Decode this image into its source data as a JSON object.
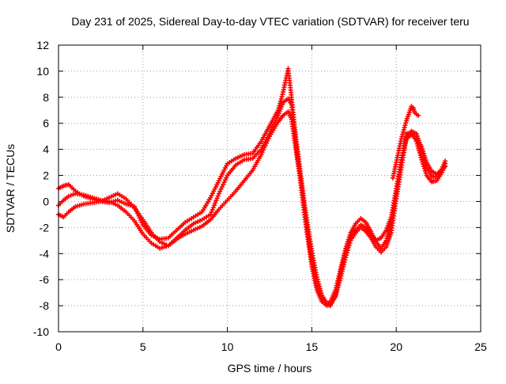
{
  "chart_data": {
    "type": "scatter",
    "title": "Day 231 of 2025, Sidereal Day-to-day VTEC variation (SDTVAR) for receiver teru",
    "xlabel": "GPS time / hours",
    "ylabel": "SDTVAR / TECUs",
    "xlim": [
      0,
      25
    ],
    "ylim": [
      -10,
      12
    ],
    "xticks": [
      0,
      5,
      10,
      15,
      20,
      25
    ],
    "yticks": [
      -10,
      -8,
      -6,
      -4,
      -2,
      0,
      2,
      4,
      6,
      8,
      10,
      12
    ],
    "grid": true,
    "marker": "plus",
    "marker_color": "#ff0000",
    "series": [
      {
        "x": [
          0.0,
          0.3,
          0.6,
          1.0,
          1.5,
          2.0,
          2.5,
          3.0,
          3.5,
          4.0,
          4.5,
          5.0,
          5.5,
          6.0,
          6.5,
          7.0,
          7.5,
          8.0,
          8.5,
          9.0,
          9.5,
          10.0,
          10.5,
          11.0,
          11.5,
          12.0,
          12.5,
          13.0,
          13.3,
          13.6,
          13.8,
          14.0,
          14.3,
          14.6,
          15.0,
          15.3,
          15.6,
          15.9,
          16.1,
          16.4,
          16.7,
          17.0,
          17.3,
          17.6,
          17.9,
          18.2,
          18.5,
          18.8,
          19.1,
          19.4,
          19.7,
          20.0,
          20.3,
          20.6,
          20.9,
          21.2,
          21.5,
          21.8,
          22.1,
          22.4,
          22.7,
          22.9
        ],
        "y": [
          1.0,
          1.2,
          1.3,
          0.8,
          0.4,
          0.2,
          0.0,
          -0.1,
          0.1,
          -0.2,
          -0.4,
          -1.8,
          -2.6,
          -2.9,
          -2.8,
          -2.2,
          -1.6,
          -1.2,
          -0.8,
          0.3,
          1.6,
          2.9,
          3.3,
          3.6,
          3.7,
          4.6,
          5.8,
          7.0,
          8.4,
          10.2,
          8.0,
          5.5,
          2.5,
          -0.5,
          -3.8,
          -5.8,
          -7.2,
          -7.8,
          -8.0,
          -7.2,
          -5.5,
          -3.8,
          -2.8,
          -2.2,
          -1.8,
          -2.0,
          -2.5,
          -3.0,
          -2.8,
          -2.2,
          -1.2,
          1.0,
          3.2,
          4.8,
          5.1,
          5.0,
          4.2,
          3.0,
          2.3,
          2.1,
          2.5,
          3.1
        ]
      },
      {
        "x": [
          0.0,
          0.3,
          0.6,
          1.0,
          1.5,
          2.0,
          2.5,
          3.0,
          3.5,
          4.0,
          4.5,
          5.0,
          5.5,
          6.0,
          6.5,
          7.0,
          7.5,
          8.0,
          8.5,
          9.0,
          9.5,
          10.0,
          10.5,
          11.0,
          11.5,
          12.0,
          12.5,
          13.0,
          13.3,
          13.6,
          13.8,
          14.0,
          14.3,
          14.6,
          15.0,
          15.3,
          15.6,
          15.9,
          16.1,
          16.4,
          16.7,
          17.0,
          17.3,
          17.6,
          17.9,
          18.2,
          18.5,
          18.8,
          19.1,
          19.4,
          19.7,
          20.0,
          20.3,
          20.6,
          20.9,
          21.2,
          21.5,
          21.8,
          22.1,
          22.4,
          22.7,
          22.9
        ],
        "y": [
          -0.3,
          0.1,
          0.4,
          0.6,
          0.5,
          0.3,
          0.1,
          0.0,
          -0.3,
          -0.8,
          -1.5,
          -2.5,
          -3.2,
          -3.6,
          -3.4,
          -2.8,
          -2.2,
          -1.7,
          -1.4,
          -1.0,
          0.6,
          2.0,
          2.8,
          3.2,
          3.3,
          4.0,
          5.2,
          6.6,
          7.6,
          7.9,
          7.4,
          5.0,
          2.0,
          -1.0,
          -4.5,
          -6.5,
          -7.5,
          -7.9,
          -7.7,
          -6.8,
          -5.2,
          -3.6,
          -2.4,
          -1.7,
          -1.3,
          -1.6,
          -2.3,
          -3.1,
          -3.6,
          -3.0,
          -1.6,
          0.6,
          3.0,
          5.2,
          5.3,
          4.6,
          3.2,
          2.0,
          1.5,
          1.6,
          2.2,
          2.9
        ]
      },
      {
        "x": [
          0.0,
          0.3,
          0.6,
          1.0,
          1.5,
          2.0,
          2.5,
          3.0,
          3.5,
          4.0,
          4.5,
          5.0,
          5.5,
          6.0,
          6.5,
          7.0,
          7.5,
          8.0,
          8.5,
          9.0,
          9.5,
          10.0,
          10.5,
          11.0,
          11.5,
          12.0,
          12.5,
          13.0,
          13.3,
          13.6,
          13.8,
          14.0,
          14.3,
          14.6,
          15.0,
          15.3,
          15.6,
          15.9,
          16.1,
          16.4,
          16.7,
          17.0,
          17.3,
          17.6,
          17.9,
          18.2,
          18.5,
          18.8,
          19.1,
          19.4,
          19.7,
          20.0,
          20.3,
          20.6,
          20.9,
          21.2,
          21.5,
          21.8,
          22.1,
          22.4,
          22.7,
          22.9
        ],
        "y": [
          -1.0,
          -1.2,
          -0.8,
          -0.4,
          -0.2,
          -0.1,
          0.0,
          0.3,
          0.6,
          0.2,
          -0.5,
          -1.4,
          -2.4,
          -3.1,
          -3.4,
          -2.9,
          -2.5,
          -2.2,
          -1.9,
          -1.4,
          -0.6,
          0.1,
          0.8,
          1.6,
          2.4,
          3.6,
          5.0,
          6.1,
          6.6,
          6.9,
          6.3,
          4.5,
          1.8,
          -1.4,
          -5.0,
          -6.8,
          -7.7,
          -8.0,
          -7.9,
          -7.3,
          -5.9,
          -4.3,
          -3.0,
          -2.4,
          -2.0,
          -2.3,
          -2.8,
          -3.5,
          -3.9,
          -3.5,
          -2.4,
          0.2,
          2.6,
          4.9,
          5.4,
          5.2,
          4.0,
          2.6,
          1.9,
          1.9,
          2.4,
          2.7
        ]
      },
      {
        "x": [
          19.8,
          20.0,
          20.3,
          20.6,
          20.9,
          21.0,
          21.1,
          21.3
        ],
        "y": [
          1.8,
          3.0,
          4.8,
          6.2,
          7.3,
          7.2,
          6.8,
          6.6
        ]
      }
    ]
  }
}
